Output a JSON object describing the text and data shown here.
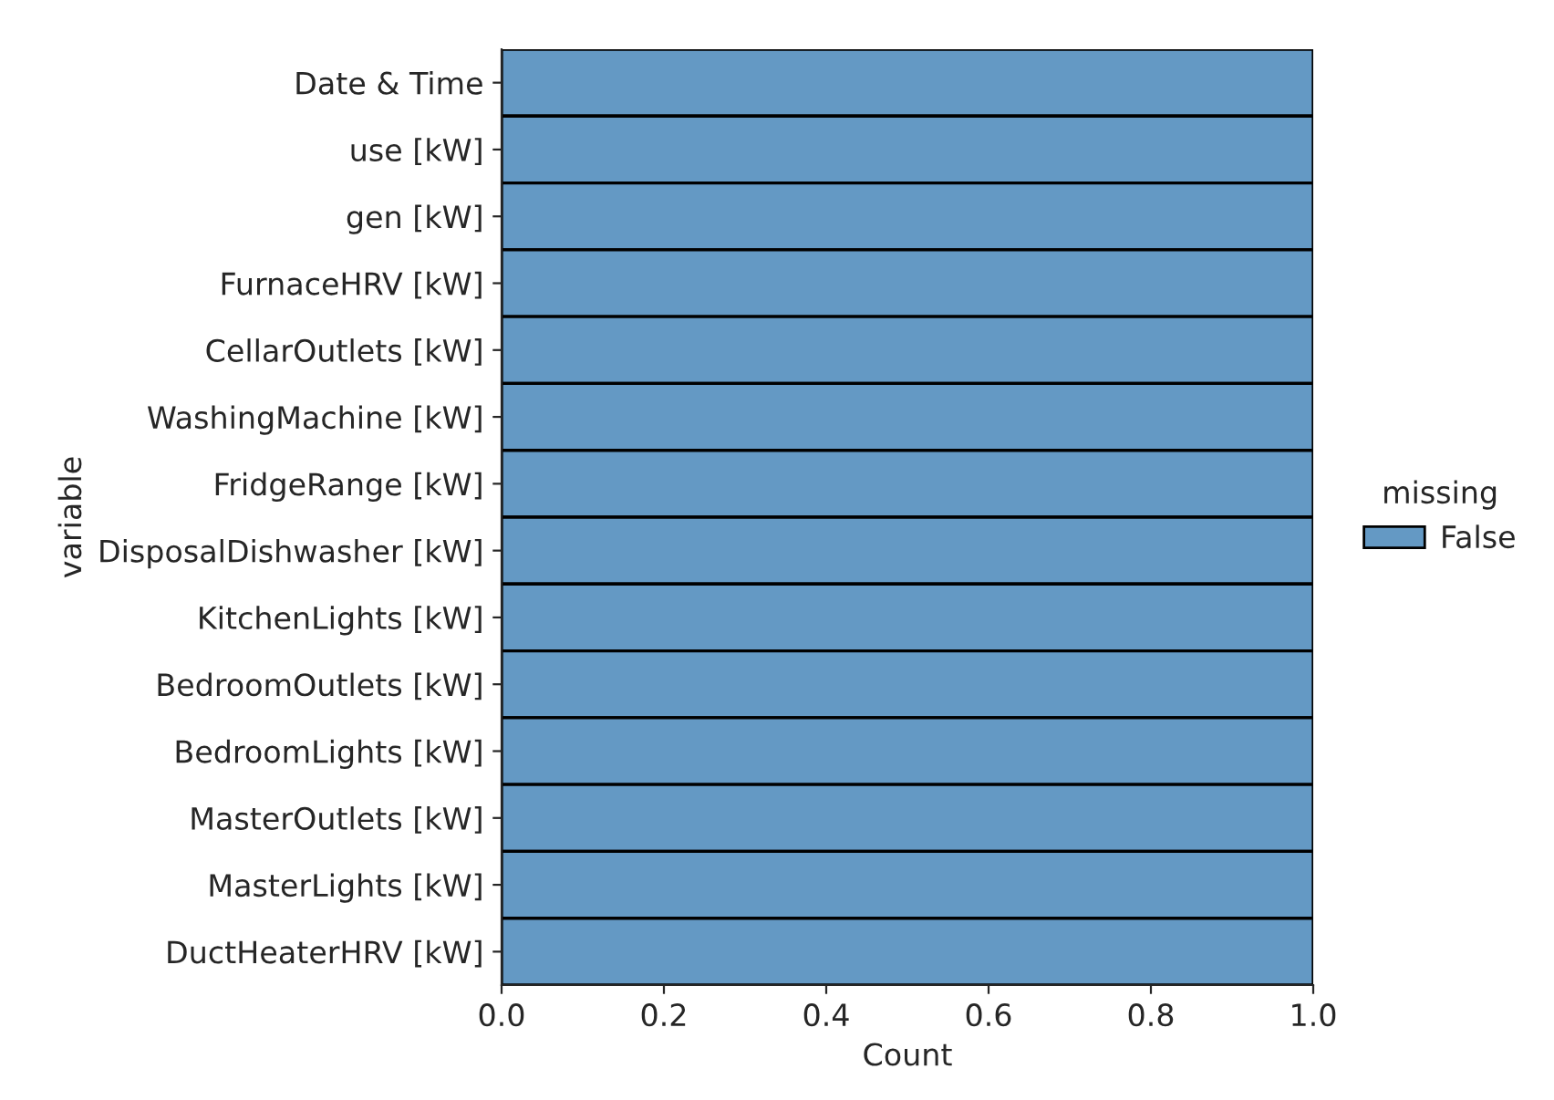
{
  "chart_data": {
    "type": "bar",
    "orientation": "horizontal",
    "categories": [
      "Date & Time",
      "use [kW]",
      "gen [kW]",
      "FurnaceHRV [kW]",
      "CellarOutlets [kW]",
      "WashingMachine [kW]",
      "FridgeRange [kW]",
      "DisposalDishwasher [kW]",
      "KitchenLights [kW]",
      "BedroomOutlets [kW]",
      "BedroomLights [kW]",
      "MasterOutlets [kW]",
      "MasterLights [kW]",
      "DuctHeaterHRV [kW]"
    ],
    "series": [
      {
        "name": "False",
        "color": "#6499c4",
        "values": [
          1,
          1,
          1,
          1,
          1,
          1,
          1,
          1,
          1,
          1,
          1,
          1,
          1,
          1
        ]
      }
    ],
    "xlim": [
      0,
      1
    ],
    "xticks": [
      {
        "value": 0,
        "label": "0.0"
      },
      {
        "value": 0.2,
        "label": "0.2"
      },
      {
        "value": 0.4,
        "label": "0.4"
      },
      {
        "value": 0.6,
        "label": "0.6"
      },
      {
        "value": 0.8,
        "label": "0.8"
      },
      {
        "value": 1,
        "label": "1.0"
      }
    ],
    "xlabel": "Count",
    "ylabel": "variable",
    "legend_title": "missing",
    "legend": "right"
  }
}
